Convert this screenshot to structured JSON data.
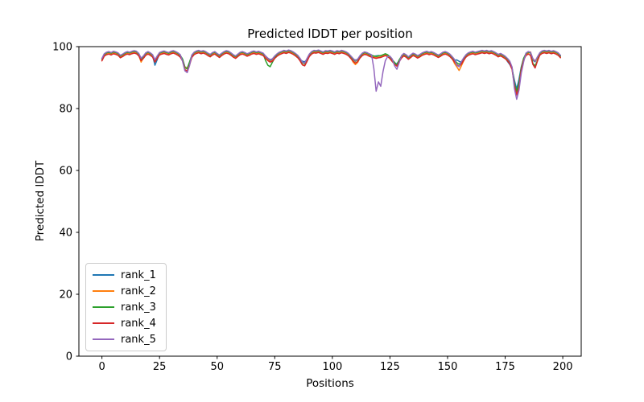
{
  "chart_data": {
    "type": "line",
    "title": "Predicted lDDT per position",
    "xlabel": "Positions",
    "ylabel": "Predicted lDDT",
    "xlim": [
      -10,
      208
    ],
    "ylim": [
      0,
      100
    ],
    "xticks": [
      0,
      25,
      50,
      75,
      100,
      125,
      150,
      175,
      200
    ],
    "yticks": [
      0,
      20,
      40,
      60,
      80,
      100
    ],
    "grid": false,
    "legend_position": "lower left",
    "x_start": 0,
    "x_step": 1,
    "series": [
      {
        "name": "rank_1",
        "color": "#1f77b4",
        "values": [
          95.9,
          97.4,
          97.9,
          98.1,
          97.8,
          98.2,
          98.0,
          97.7,
          96.9,
          97.3,
          97.8,
          98.1,
          97.9,
          98.2,
          98.4,
          98.2,
          97.5,
          96.0,
          96.7,
          97.7,
          98.1,
          97.7,
          97.1,
          94.0,
          95.8,
          97.8,
          98.1,
          98.3,
          98.0,
          97.8,
          98.2,
          98.4,
          98.1,
          97.7,
          97.1,
          95.9,
          93.5,
          93.0,
          94.9,
          97.0,
          97.9,
          98.3,
          98.5,
          98.2,
          98.4,
          98.1,
          97.6,
          97.2,
          97.8,
          98.1,
          97.5,
          97.0,
          97.6,
          98.1,
          98.4,
          98.2,
          97.7,
          97.1,
          96.7,
          97.3,
          97.9,
          98.1,
          97.8,
          97.4,
          97.7,
          98.1,
          98.3,
          98.0,
          98.2,
          97.9,
          97.6,
          96.7,
          96.0,
          95.5,
          95.8,
          96.7,
          97.4,
          97.9,
          98.2,
          98.5,
          98.3,
          98.6,
          98.4,
          98.0,
          97.5,
          96.9,
          95.9,
          95.3,
          95.1,
          95.9,
          97.3,
          98.1,
          98.5,
          98.4,
          98.6,
          98.3,
          98.0,
          98.4,
          98.3,
          98.5,
          98.3,
          98.0,
          98.4,
          98.2,
          98.5,
          98.3,
          98.0,
          97.5,
          96.7,
          95.9,
          95.7,
          95.7,
          96.8,
          97.6,
          98.0,
          97.8,
          97.4,
          97.1,
          96.9,
          97.0,
          97.1,
          97.0,
          97.3,
          97.6,
          97.3,
          96.6,
          95.7,
          94.8,
          94.4,
          95.6,
          96.8,
          97.5,
          97.1,
          96.4,
          97.0,
          97.6,
          97.3,
          96.8,
          97.2,
          97.7,
          98.0,
          98.2,
          97.9,
          98.1,
          97.8,
          97.4,
          97.0,
          97.4,
          97.9,
          98.1,
          97.8,
          97.3,
          96.5,
          95.6,
          95.7,
          95.3,
          94.9,
          96.1,
          97.1,
          97.7,
          98.0,
          98.2,
          97.9,
          98.1,
          98.3,
          98.5,
          98.3,
          98.5,
          98.2,
          98.4,
          98.1,
          97.7,
          97.2,
          97.5,
          97.1,
          96.6,
          95.2,
          94.2,
          92.8,
          89.2,
          86.3,
          89.5,
          93.5,
          96.1,
          97.6,
          98.1,
          97.9,
          95.6,
          95.1,
          96.4,
          97.7,
          98.3,
          98.5,
          98.3,
          98.5,
          98.2,
          98.4,
          98.1,
          97.7,
          96.9
        ]
      },
      {
        "name": "rank_2",
        "color": "#ff7f0e",
        "values": [
          95.6,
          97.1,
          97.6,
          97.8,
          97.5,
          97.9,
          97.7,
          97.4,
          96.6,
          97.0,
          97.5,
          97.8,
          97.6,
          97.9,
          98.1,
          97.9,
          97.2,
          95.0,
          96.4,
          97.4,
          97.8,
          97.4,
          96.8,
          95.2,
          96.4,
          97.5,
          97.8,
          98.0,
          97.7,
          97.5,
          97.9,
          98.1,
          97.8,
          97.4,
          96.8,
          95.6,
          93.4,
          93.0,
          94.6,
          96.7,
          97.6,
          98.0,
          98.2,
          97.9,
          98.1,
          97.8,
          97.3,
          96.9,
          97.5,
          97.8,
          97.2,
          96.7,
          97.3,
          97.8,
          98.1,
          97.9,
          97.4,
          96.8,
          96.4,
          97.0,
          97.6,
          97.8,
          97.5,
          97.1,
          97.4,
          97.8,
          98.0,
          97.7,
          97.9,
          97.6,
          97.3,
          96.4,
          95.7,
          95.2,
          95.5,
          96.4,
          97.1,
          97.6,
          97.9,
          98.2,
          98.0,
          98.3,
          98.1,
          97.7,
          97.2,
          96.6,
          95.6,
          94.2,
          93.9,
          95.6,
          97.0,
          97.8,
          98.2,
          98.1,
          98.3,
          98.0,
          97.7,
          98.1,
          98.0,
          98.2,
          98.0,
          97.7,
          98.1,
          97.9,
          98.2,
          98.0,
          97.7,
          97.2,
          96.4,
          95.0,
          94.2,
          94.9,
          96.5,
          97.3,
          97.7,
          97.5,
          97.1,
          96.8,
          96.6,
          96.4,
          96.6,
          96.7,
          97.0,
          97.3,
          97.0,
          96.3,
          95.4,
          94.5,
          94.1,
          95.3,
          96.5,
          97.2,
          96.8,
          96.1,
          96.7,
          97.3,
          97.0,
          96.5,
          96.9,
          97.4,
          97.7,
          97.9,
          97.6,
          97.8,
          97.5,
          97.1,
          96.7,
          97.1,
          97.6,
          97.8,
          97.5,
          97.0,
          96.2,
          94.6,
          93.5,
          92.3,
          93.8,
          95.4,
          96.8,
          97.4,
          97.7,
          97.9,
          97.6,
          97.8,
          98.0,
          98.2,
          98.0,
          98.2,
          97.9,
          98.1,
          97.8,
          97.4,
          96.9,
          97.2,
          96.8,
          96.3,
          95.6,
          94.7,
          92.8,
          88.0,
          85.3,
          87.8,
          92.8,
          95.8,
          97.3,
          97.8,
          98.3,
          95.9,
          95.3,
          96.1,
          97.4,
          98.0,
          98.2,
          98.0,
          98.2,
          97.9,
          98.1,
          97.8,
          97.4,
          96.6
        ]
      },
      {
        "name": "rank_3",
        "color": "#2ca02c",
        "values": [
          96.0,
          97.5,
          98.0,
          98.2,
          97.9,
          98.3,
          98.1,
          97.8,
          97.0,
          97.4,
          97.9,
          98.2,
          98.0,
          98.3,
          98.5,
          98.3,
          97.6,
          96.1,
          96.8,
          97.8,
          98.2,
          97.8,
          97.2,
          95.6,
          96.8,
          97.9,
          98.2,
          98.4,
          98.1,
          97.9,
          98.3,
          98.5,
          98.2,
          97.8,
          97.2,
          96.0,
          93.2,
          92.8,
          95.0,
          97.1,
          98.0,
          98.4,
          98.6,
          98.3,
          98.5,
          98.2,
          97.7,
          97.3,
          97.9,
          98.2,
          97.6,
          97.1,
          97.7,
          98.2,
          98.5,
          98.3,
          97.8,
          97.2,
          96.8,
          97.4,
          98.0,
          98.2,
          97.9,
          97.5,
          97.8,
          98.2,
          98.4,
          98.1,
          98.3,
          98.0,
          97.7,
          95.5,
          94.0,
          93.5,
          95.0,
          96.3,
          97.5,
          98.0,
          98.3,
          98.6,
          98.4,
          98.7,
          98.5,
          98.1,
          97.6,
          97.0,
          96.0,
          94.8,
          94.5,
          96.0,
          97.4,
          98.2,
          98.6,
          98.5,
          98.7,
          98.4,
          98.1,
          98.5,
          98.4,
          98.6,
          98.4,
          98.1,
          98.5,
          98.3,
          98.6,
          98.4,
          98.1,
          97.6,
          96.8,
          96.0,
          95.3,
          95.8,
          96.9,
          97.7,
          98.1,
          97.9,
          97.5,
          97.2,
          97.0,
          96.8,
          97.0,
          97.1,
          97.4,
          97.7,
          97.4,
          96.7,
          95.8,
          94.9,
          94.0,
          95.7,
          96.9,
          97.6,
          97.2,
          96.5,
          97.1,
          97.7,
          97.4,
          96.9,
          97.3,
          97.8,
          98.1,
          98.3,
          98.0,
          98.2,
          97.9,
          97.5,
          97.1,
          97.5,
          98.0,
          98.2,
          97.9,
          97.4,
          96.6,
          95.7,
          94.8,
          94.3,
          95.0,
          96.2,
          97.2,
          97.8,
          98.1,
          98.3,
          98.0,
          98.2,
          98.4,
          98.6,
          98.4,
          98.6,
          98.3,
          98.5,
          98.2,
          97.8,
          97.3,
          97.6,
          97.2,
          96.7,
          96.0,
          95.1,
          93.2,
          88.2,
          85.6,
          88.2,
          93.2,
          96.2,
          97.7,
          98.2,
          98.0,
          94.6,
          93.8,
          95.5,
          97.8,
          98.4,
          98.6,
          98.4,
          98.6,
          98.3,
          98.5,
          98.2,
          97.8,
          97.0
        ]
      },
      {
        "name": "rank_4",
        "color": "#d62728",
        "values": [
          95.4,
          96.9,
          97.4,
          97.6,
          97.3,
          97.7,
          97.5,
          97.2,
          96.4,
          96.8,
          97.3,
          97.6,
          97.4,
          97.7,
          97.9,
          97.7,
          97.0,
          95.5,
          96.2,
          97.2,
          97.6,
          97.2,
          96.6,
          95.0,
          96.2,
          97.3,
          97.6,
          97.8,
          97.5,
          97.3,
          97.7,
          97.9,
          97.6,
          97.2,
          96.6,
          95.4,
          92.6,
          92.1,
          94.0,
          96.5,
          97.4,
          97.8,
          98.0,
          97.7,
          97.9,
          97.6,
          97.1,
          96.7,
          97.3,
          97.6,
          97.0,
          96.5,
          97.1,
          97.6,
          97.9,
          97.7,
          97.2,
          96.6,
          96.2,
          96.8,
          97.4,
          97.6,
          97.3,
          96.9,
          97.2,
          97.6,
          97.8,
          97.5,
          97.7,
          97.4,
          97.1,
          96.2,
          95.5,
          95.0,
          95.3,
          96.2,
          96.9,
          97.4,
          97.7,
          98.0,
          97.8,
          98.1,
          97.9,
          97.5,
          97.0,
          96.4,
          95.4,
          94.1,
          93.8,
          95.2,
          96.8,
          97.6,
          98.0,
          97.9,
          98.1,
          97.8,
          97.5,
          97.9,
          97.8,
          98.0,
          97.8,
          97.5,
          97.9,
          97.7,
          98.0,
          97.8,
          97.5,
          97.0,
          96.2,
          95.4,
          94.7,
          95.2,
          96.3,
          97.1,
          97.5,
          97.3,
          96.9,
          96.6,
          96.4,
          96.2,
          96.4,
          96.5,
          96.8,
          97.1,
          96.8,
          96.1,
          95.2,
          94.3,
          93.7,
          95.1,
          96.3,
          97.0,
          96.6,
          95.9,
          96.5,
          97.1,
          96.8,
          96.3,
          96.7,
          97.2,
          97.5,
          97.7,
          97.4,
          97.6,
          97.3,
          96.9,
          96.5,
          96.9,
          97.4,
          97.6,
          97.3,
          96.8,
          96.0,
          95.1,
          94.2,
          93.6,
          94.4,
          95.6,
          96.6,
          97.2,
          97.5,
          97.7,
          97.4,
          97.6,
          97.8,
          98.0,
          97.8,
          98.0,
          97.7,
          97.9,
          97.6,
          97.2,
          96.7,
          97.0,
          96.6,
          96.1,
          95.4,
          94.5,
          92.6,
          87.5,
          84.4,
          87.0,
          92.6,
          95.6,
          97.1,
          97.6,
          97.2,
          94.3,
          93.1,
          95.3,
          97.2,
          97.8,
          98.0,
          97.8,
          98.0,
          97.7,
          97.9,
          97.6,
          97.2,
          96.4
        ]
      },
      {
        "name": "rank_5",
        "color": "#9467bd",
        "values": [
          96.2,
          97.7,
          98.2,
          98.4,
          98.1,
          98.5,
          98.3,
          98.0,
          97.2,
          97.6,
          98.1,
          98.4,
          98.2,
          98.5,
          98.7,
          98.5,
          97.8,
          96.3,
          97.0,
          98.0,
          98.4,
          98.0,
          97.4,
          95.8,
          97.0,
          98.1,
          98.4,
          98.6,
          98.3,
          98.1,
          98.5,
          98.7,
          98.4,
          98.0,
          97.4,
          95.2,
          92.2,
          91.6,
          93.8,
          97.3,
          98.2,
          98.6,
          98.8,
          98.5,
          98.7,
          98.4,
          97.9,
          97.5,
          98.1,
          98.4,
          97.8,
          97.3,
          97.9,
          98.4,
          98.7,
          98.5,
          98.0,
          97.4,
          97.0,
          97.6,
          98.2,
          98.4,
          98.1,
          97.7,
          98.0,
          98.4,
          98.6,
          98.3,
          98.5,
          98.2,
          97.9,
          97.0,
          96.3,
          95.8,
          96.1,
          97.0,
          97.7,
          98.2,
          98.5,
          98.8,
          98.6,
          98.9,
          98.7,
          98.3,
          97.8,
          97.2,
          96.2,
          95.0,
          94.7,
          96.2,
          97.6,
          98.4,
          98.8,
          98.7,
          98.9,
          98.6,
          98.3,
          98.7,
          98.6,
          98.8,
          98.6,
          98.3,
          98.7,
          98.5,
          98.8,
          98.6,
          98.3,
          97.8,
          97.0,
          96.2,
          95.5,
          96.0,
          97.1,
          97.9,
          98.3,
          98.1,
          97.7,
          97.4,
          93.0,
          85.6,
          88.6,
          87.2,
          92.0,
          95.5,
          96.8,
          96.9,
          96.0,
          93.8,
          92.7,
          94.8,
          97.1,
          97.8,
          97.4,
          96.7,
          97.3,
          97.9,
          97.6,
          97.1,
          97.5,
          98.0,
          98.3,
          98.5,
          98.2,
          98.4,
          98.1,
          97.7,
          97.3,
          97.7,
          98.2,
          98.4,
          98.1,
          97.6,
          96.8,
          95.9,
          94.0,
          93.5,
          95.2,
          96.4,
          97.4,
          98.0,
          98.3,
          98.5,
          98.2,
          98.4,
          98.6,
          98.8,
          98.6,
          98.8,
          98.5,
          98.7,
          98.4,
          98.0,
          97.5,
          97.8,
          97.4,
          96.9,
          96.2,
          95.3,
          93.4,
          86.5,
          83.0,
          86.0,
          91.5,
          95.0,
          97.9,
          98.4,
          98.2,
          96.2,
          95.3,
          96.7,
          98.0,
          98.6,
          98.8,
          98.6,
          98.8,
          98.5,
          98.7,
          98.4,
          98.0,
          97.2
        ]
      }
    ]
  },
  "colors": {
    "background": "#ffffff",
    "axes": "#000000",
    "text": "#000000",
    "legend_border": "#cccccc"
  }
}
